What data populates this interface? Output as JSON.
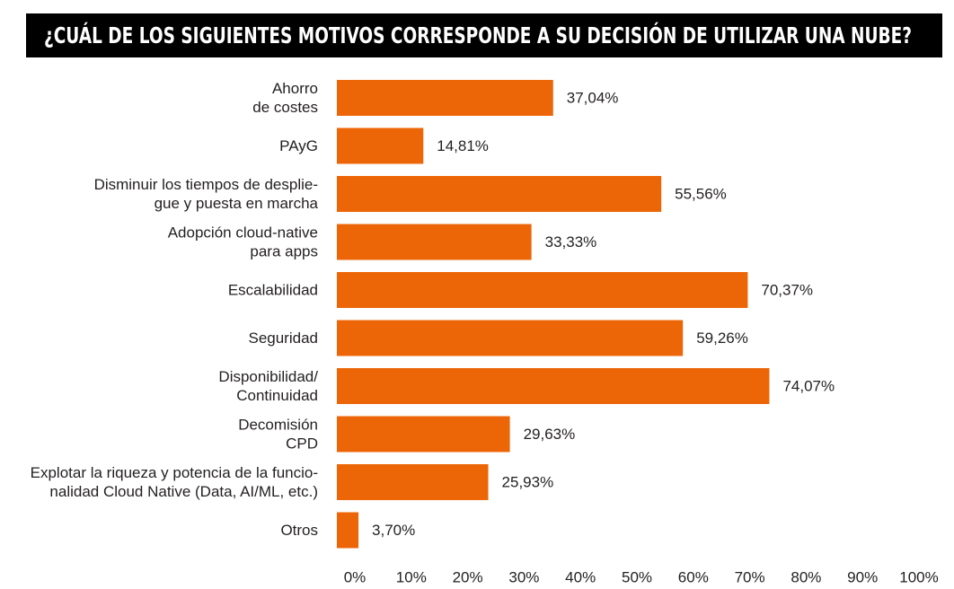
{
  "colors": {
    "bar": "#ec6608",
    "text": "#231f20",
    "title_bg": "#000000",
    "title_fg": "#ffffff"
  },
  "chart_data": {
    "type": "bar",
    "orientation": "horizontal",
    "title": "¿CUÁL DE LOS SIGUIENTES MOTIVOS CORRESPONDE A SU DECISIÓN DE UTILIZAR UNA NUBE?",
    "categories": [
      [
        "Ahorro",
        "de costes"
      ],
      [
        "PAyG"
      ],
      [
        "Disminuir los tiempos de desplie-",
        "gue y puesta en marcha"
      ],
      [
        "Adopción cloud-native",
        "para apps"
      ],
      [
        "Escalabilidad"
      ],
      [
        "Seguridad"
      ],
      [
        "Disponibilidad/",
        "Continuidad"
      ],
      [
        "Decomisión",
        "CPD"
      ],
      [
        "Explotar la riqueza y potencia de la funcio-",
        "nalidad Cloud Native (Data, AI/ML, etc.)"
      ],
      [
        "Otros"
      ]
    ],
    "values": [
      37.04,
      14.81,
      55.56,
      33.33,
      70.37,
      59.26,
      74.07,
      29.63,
      25.93,
      3.7
    ],
    "value_labels": [
      "37,04%",
      "14,81%",
      "55,56%",
      "33,33%",
      "70,37%",
      "59,26%",
      "74,07%",
      "29,63%",
      "25,93%",
      "3,70%"
    ],
    "xlim": [
      0,
      100
    ],
    "x_ticks": [
      "0%",
      "10%",
      "20%",
      "30%",
      "40%",
      "50%",
      "60%",
      "70%",
      "80%",
      "90%",
      "100%"
    ],
    "xlabel": "",
    "ylabel": "",
    "grid": false,
    "legend": "none"
  }
}
